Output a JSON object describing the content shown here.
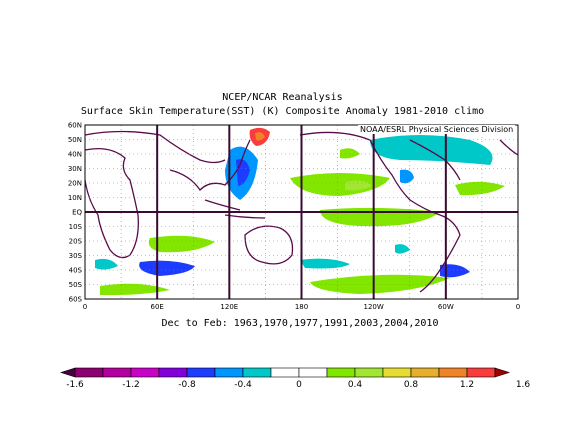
{
  "title": "NCEP/NCAR Reanalysis",
  "subtitle": "Surface Skin Temperature(SST) (K) Composite Anomaly 1981-2010 climo",
  "credit": "NOAA/ESRL Physical Sciences Division",
  "caption": "Dec to Feb: 1963,1970,1977,1991,2003,2004,2010",
  "lat_labels": [
    "60N",
    "50N",
    "40N",
    "30N",
    "20N",
    "10N",
    "EQ",
    "10S",
    "20S",
    "30S",
    "40S",
    "50S",
    "60S"
  ],
  "lon_labels": [
    "0",
    "60E",
    "120E",
    "180",
    "120W",
    "60W",
    "0"
  ],
  "colorbar": {
    "colors": [
      "#8c0071",
      "#b4009e",
      "#c800c8",
      "#8200dc",
      "#1e3cff",
      "#0096ff",
      "#00c8c8",
      "#ffffff",
      "#ffffff",
      "#82e600",
      "#a0e632",
      "#e6dc32",
      "#e6af2d",
      "#f08228",
      "#fa3c3c"
    ],
    "labels": [
      "-1.6",
      "-1.2",
      "-0.8",
      "-0.4",
      "0",
      "0.4",
      "0.8",
      "1.2",
      "1.6"
    ]
  }
}
